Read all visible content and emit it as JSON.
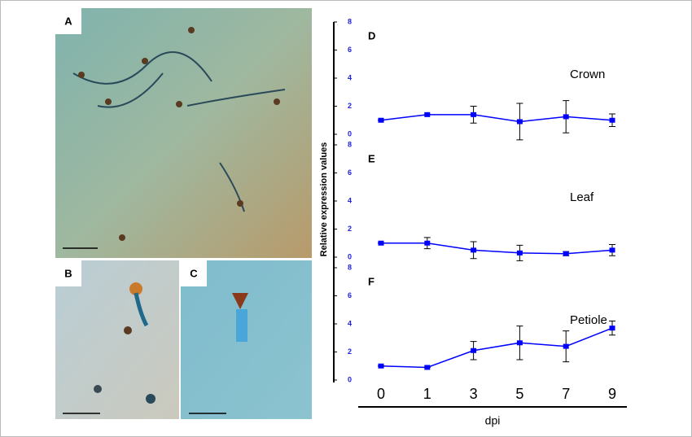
{
  "image_panels": [
    "A",
    "B",
    "C"
  ],
  "y_label": "Relative expression values",
  "x_label": "dpi",
  "categories": [
    "0",
    "1",
    "3",
    "5",
    "7",
    "9"
  ],
  "chart_data": [
    {
      "type": "line",
      "panel": "D",
      "annotation": "Crown",
      "ylim": [
        0,
        8
      ],
      "yticks": [
        0,
        2,
        4,
        6,
        8
      ],
      "series": [
        {
          "color": "#0000ff",
          "values": [
            1.0,
            1.4,
            1.4,
            0.9,
            1.25,
            1.0
          ],
          "errors": [
            0,
            0,
            0.6,
            1.3,
            1.15,
            0.45
          ]
        }
      ]
    },
    {
      "type": "line",
      "panel": "E",
      "annotation": "Leaf",
      "ylim": [
        0,
        8
      ],
      "yticks": [
        0,
        2,
        4,
        6,
        8
      ],
      "series": [
        {
          "color": "#0000ff",
          "values": [
            1.0,
            1.0,
            0.5,
            0.3,
            0.25,
            0.5
          ],
          "errors": [
            0,
            0.4,
            0.6,
            0.55,
            0.15,
            0.4
          ]
        }
      ]
    },
    {
      "type": "line",
      "panel": "F",
      "annotation": "Petiole",
      "ylim": [
        0,
        8
      ],
      "yticks": [
        0,
        2,
        4,
        6,
        8
      ],
      "series": [
        {
          "color": "#0000ff",
          "values": [
            1.0,
            0.9,
            2.1,
            2.65,
            2.4,
            3.7
          ],
          "errors": [
            0,
            0,
            0.65,
            1.2,
            1.1,
            0.5
          ]
        }
      ]
    }
  ]
}
